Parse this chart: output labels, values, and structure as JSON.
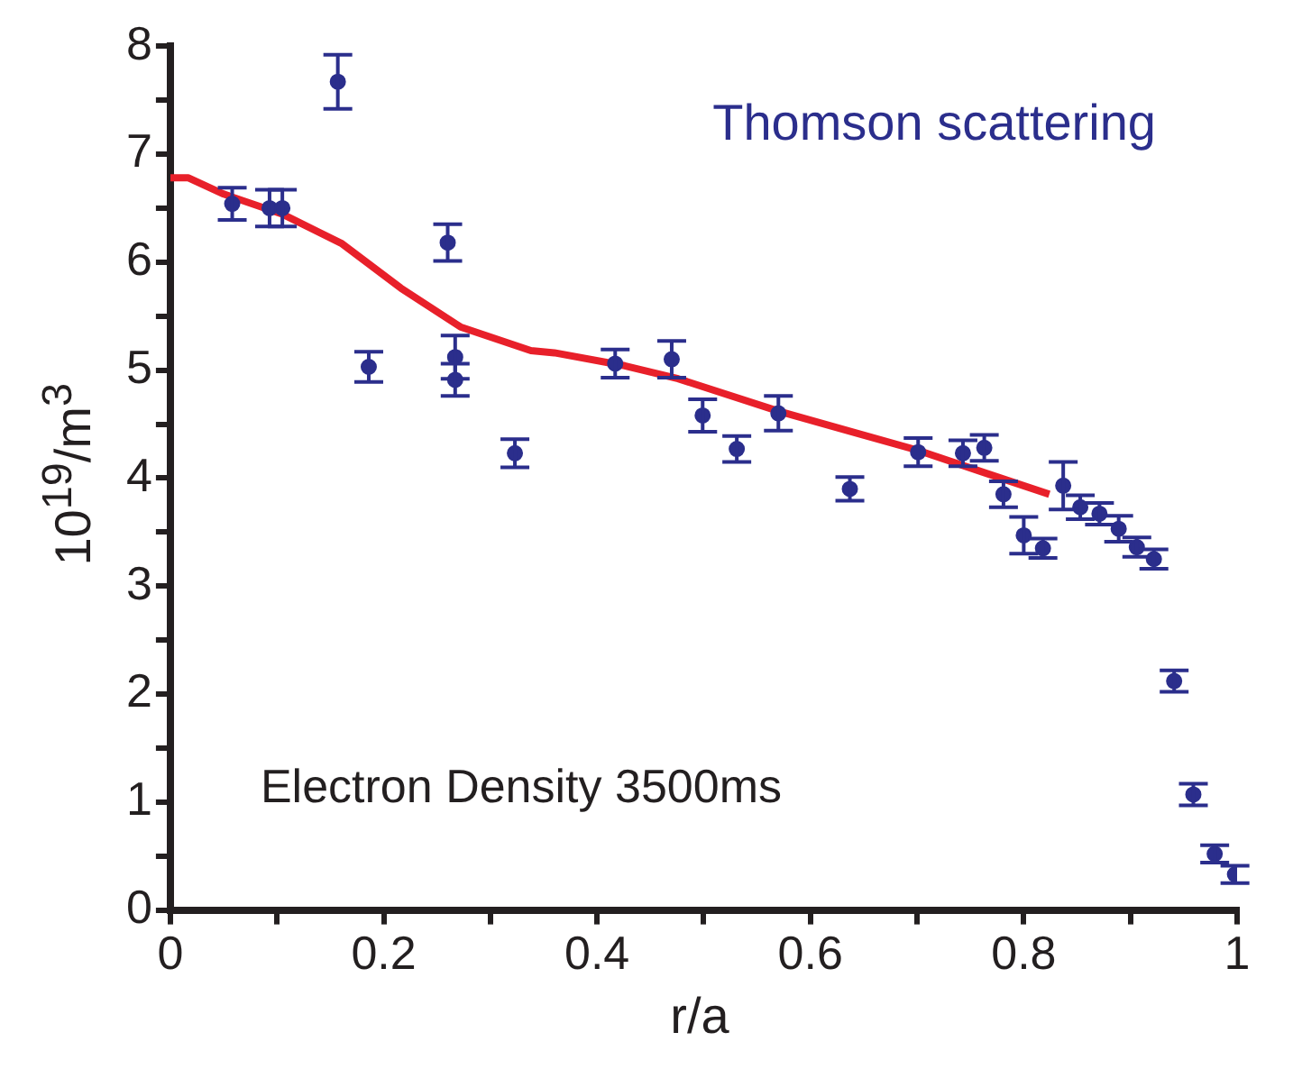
{
  "chart_data": {
    "type": "scatter",
    "xlabel": "r/a",
    "ylabel": "10$^{19}$/m$^{3}$",
    "annotations": [
      "Electron Density 3500ms"
    ],
    "xlim": [
      0,
      1
    ],
    "xticks": [
      0,
      {
        "value": 0.1,
        "label": null
      },
      0.2,
      {
        "value": 0.3,
        "label": null
      },
      0.4,
      {
        "value": 0.5,
        "label": null
      },
      0.6,
      {
        "value": 0.7,
        "label": null
      },
      0.8,
      {
        "value": 0.9,
        "label": null
      },
      1
    ],
    "ylim": [
      0,
      8
    ],
    "yticks": [
      0,
      {
        "value": 0.5,
        "label": null
      },
      1,
      {
        "value": 1.5,
        "label": null
      },
      2,
      {
        "value": 2.5,
        "label": null
      },
      3,
      {
        "value": 3.5,
        "label": null
      },
      4,
      {
        "value": 4.5,
        "label": null
      },
      5,
      {
        "value": 5.5,
        "label": null
      },
      6,
      {
        "value": 6.5,
        "label": null
      },
      7,
      {
        "value": 7.5,
        "label": null
      },
      8
    ],
    "grid": false,
    "legend": false,
    "series": [
      {
        "type": "line",
        "color": "#e8202a",
        "line_style": "solid",
        "marker": "none",
        "x": [
          0,
          0.017,
          0.05,
          0.106,
          0.161,
          0.216,
          0.272,
          0.338,
          0.36,
          0.426,
          0.476,
          0.57,
          0.642,
          0.703,
          0.763,
          0.824
        ],
        "values": [
          6.78,
          6.78,
          6.63,
          6.44,
          6.17,
          5.76,
          5.4,
          5.18,
          5.16,
          5.04,
          4.92,
          4.62,
          4.42,
          4.25,
          4.05,
          3.85
        ]
      },
      {
        "type": "scatter",
        "name": "Thomson scattering",
        "color": "#2b2e8c",
        "marker": "circle",
        "x": [
          0.058,
          0.093,
          0.105,
          0.157,
          0.186,
          0.26,
          0.267,
          0.267,
          0.323,
          0.417,
          0.47,
          0.499,
          0.531,
          0.57,
          0.637,
          0.701,
          0.743,
          0.763,
          0.781,
          0.8,
          0.818,
          0.837,
          0.853,
          0.871,
          0.889,
          0.906,
          0.922,
          0.941,
          0.959,
          0.979,
          0.998
        ],
        "values": [
          6.54,
          6.5,
          6.5,
          7.67,
          5.03,
          6.18,
          5.12,
          4.91,
          4.23,
          5.06,
          5.1,
          4.58,
          4.27,
          4.6,
          3.9,
          4.24,
          4.23,
          4.28,
          3.85,
          3.47,
          3.35,
          3.93,
          3.73,
          3.67,
          3.53,
          3.36,
          3.25,
          2.12,
          1.07,
          0.52,
          0.33
        ],
        "errors": [
          0.15,
          0.17,
          0.17,
          0.25,
          0.14,
          0.17,
          0.2,
          0.15,
          0.13,
          0.13,
          0.17,
          0.15,
          0.12,
          0.16,
          0.11,
          0.13,
          0.12,
          0.12,
          0.12,
          0.17,
          0.09,
          0.22,
          0.11,
          0.1,
          0.12,
          0.09,
          0.09,
          0.1,
          0.1,
          0.08,
          0.08
        ]
      }
    ]
  }
}
